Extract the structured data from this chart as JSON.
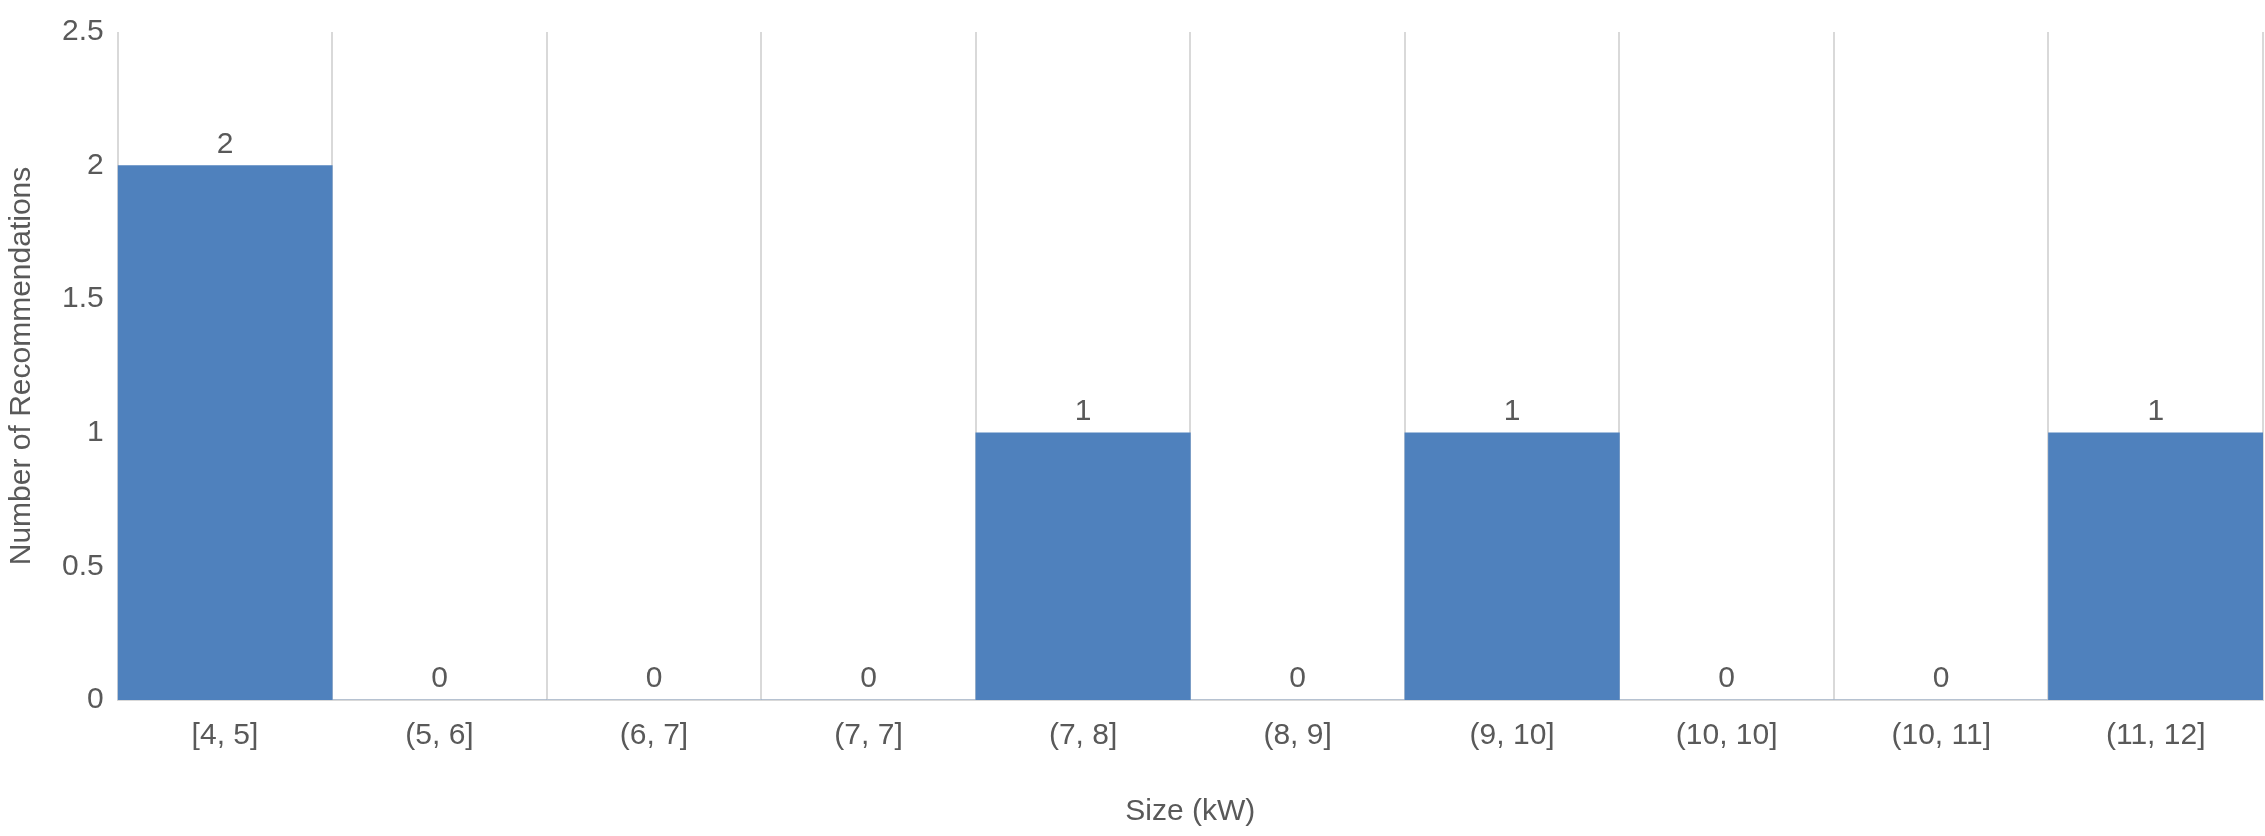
{
  "chart_data": {
    "type": "bar",
    "xlabel": "Size (kW)",
    "ylabel": "Number of Recommendations",
    "categories": [
      "[4, 5]",
      "(5, 6]",
      "(6, 7]",
      "(7, 7]",
      "(7, 8]",
      "(8, 9]",
      "(9, 10]",
      "(10, 10]",
      "(10, 11]",
      "(11, 12]"
    ],
    "values": [
      2,
      0,
      0,
      0,
      1,
      0,
      1,
      0,
      0,
      1
    ],
    "color": "#4f81bd",
    "ylim": [
      0,
      2.5
    ],
    "yticks": [
      0,
      0.5,
      1,
      1.5,
      2,
      2.5
    ],
    "grid": "x",
    "data_labels": true,
    "legend": false
  }
}
